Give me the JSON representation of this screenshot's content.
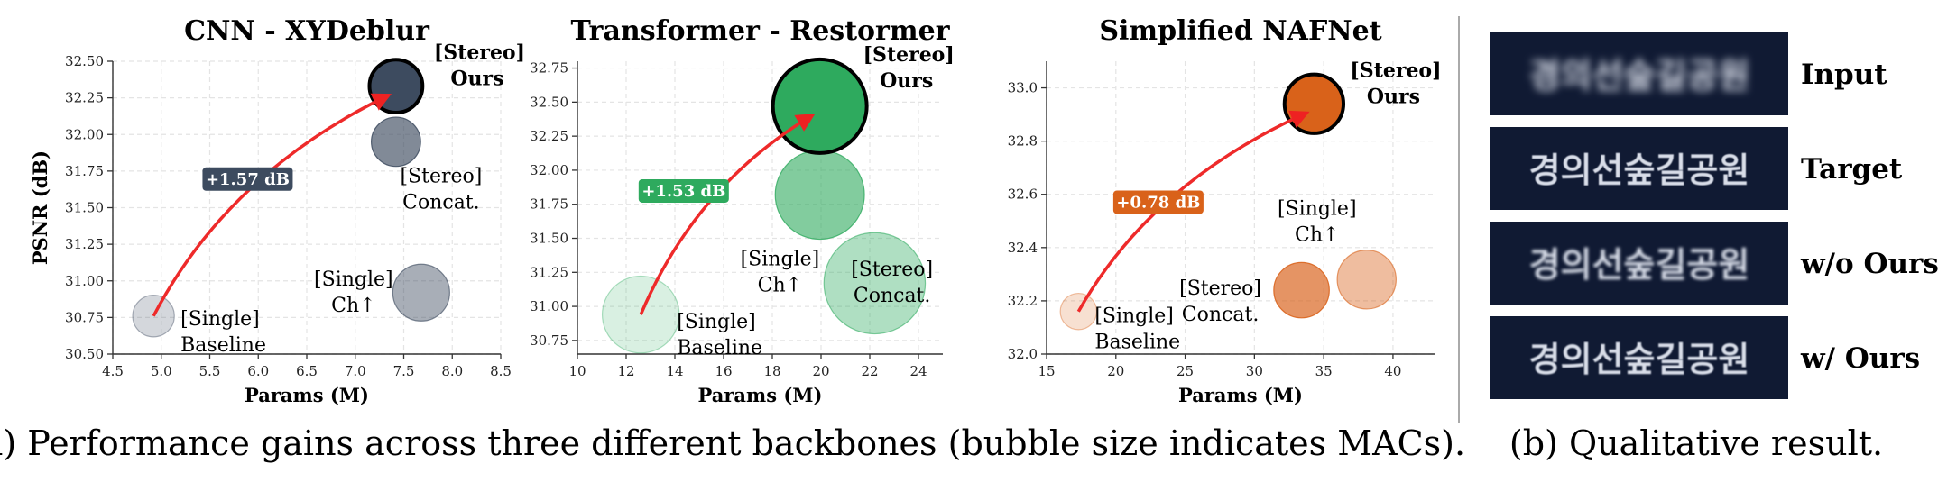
{
  "captions": {
    "a": "(a) Performance gains across three different backbones (bubble size indicates MACs).",
    "b": "(b) Qualitative result."
  },
  "qualitative": {
    "hangul_text": "경의선숲길공원",
    "rows": [
      {
        "label": "Input",
        "blur": 4.5
      },
      {
        "label": "Target",
        "blur": 0.6
      },
      {
        "label": "w/o Ours",
        "blur": 1.6
      },
      {
        "label": "w/ Ours",
        "blur": 0.9
      }
    ]
  },
  "chart_data": [
    {
      "type": "scatter",
      "title": "CNN - XYDeblur",
      "xlabel": "Params (M)",
      "ylabel": "PSNR (dB)",
      "xlim": [
        4.5,
        8.5
      ],
      "ylim": [
        30.5,
        32.5
      ],
      "xticks": [
        "4.5",
        "5.0",
        "5.5",
        "6.0",
        "6.5",
        "7.0",
        "7.5",
        "8.0",
        "8.5"
      ],
      "yticks": [
        "30.50",
        "30.75",
        "31.00",
        "31.25",
        "31.50",
        "31.75",
        "32.00",
        "32.25",
        "32.50"
      ],
      "color": "#3d4b5f",
      "gain_label": "+1.57 dB",
      "points": [
        {
          "label": [
            "[Single]",
            "Baseline"
          ],
          "x": 4.92,
          "y": 30.76,
          "mac": 0.55,
          "alpha": 0.22
        },
        {
          "label": [
            "[Single]",
            "Ch↑"
          ],
          "x": 7.68,
          "y": 30.92,
          "mac": 0.75,
          "alpha": 0.45
        },
        {
          "label": [
            "[Stereo]",
            "Concat."
          ],
          "x": 7.42,
          "y": 31.95,
          "mac": 0.65,
          "alpha": 0.65
        },
        {
          "label": [
            "[Stereo]",
            "Ours"
          ],
          "x": 7.42,
          "y": 32.33,
          "mac": 0.7,
          "alpha": 1.0,
          "highlight": true
        }
      ]
    },
    {
      "type": "scatter",
      "title": "Transformer - Restormer",
      "xlabel": "Params (M)",
      "ylabel": "",
      "xlim": [
        10,
        25
      ],
      "ylim": [
        30.65,
        32.8
      ],
      "xticks": [
        "10",
        "12",
        "14",
        "16",
        "18",
        "20",
        "22",
        "24"
      ],
      "yticks": [
        "30.75",
        "31.00",
        "31.25",
        "31.50",
        "31.75",
        "32.00",
        "32.25",
        "32.50",
        "32.75"
      ],
      "color": "#2eaa5e",
      "gain_label": "+1.53 dB",
      "points": [
        {
          "label": [
            "[Single]",
            "Baseline"
          ],
          "x": 12.6,
          "y": 30.94,
          "mac": 0.82,
          "alpha": 0.18
        },
        {
          "label": [
            "[Single]",
            "Ch↑"
          ],
          "x": 22.2,
          "y": 31.17,
          "mac": 1.08,
          "alpha": 0.38
        },
        {
          "label": [
            "[Stereo]",
            "Concat."
          ],
          "x": 19.95,
          "y": 31.82,
          "mac": 0.95,
          "alpha": 0.6
        },
        {
          "label": [
            "[Stereo]",
            "Ours"
          ],
          "x": 19.95,
          "y": 32.47,
          "mac": 1.0,
          "alpha": 1.0,
          "highlight": true
        }
      ]
    },
    {
      "type": "scatter",
      "title": "Simplified NAFNet",
      "xlabel": "Params (M)",
      "ylabel": "",
      "xlim": [
        15,
        43
      ],
      "ylim": [
        32.0,
        33.1
      ],
      "xticks": [
        "15",
        "20",
        "25",
        "30",
        "35",
        "40"
      ],
      "yticks": [
        "32.0",
        "32.2",
        "32.4",
        "32.6",
        "32.8",
        "33.0"
      ],
      "color": "#d9621a",
      "gain_label": "+0.78 dB",
      "points": [
        {
          "label": [
            "[Single]",
            "Baseline"
          ],
          "x": 17.3,
          "y": 32.16,
          "mac": 0.42,
          "alpha": 0.2
        },
        {
          "label": [
            "[Single]",
            "Ch↑"
          ],
          "x": 38.1,
          "y": 32.28,
          "mac": 0.68,
          "alpha": 0.42
        },
        {
          "label": [
            "[Stereo]",
            "Concat."
          ],
          "x": 33.4,
          "y": 32.24,
          "mac": 0.64,
          "alpha": 0.68
        },
        {
          "label": [
            "[Stereo]",
            "Ours"
          ],
          "x": 34.3,
          "y": 32.94,
          "mac": 0.68,
          "alpha": 1.0,
          "highlight": true
        }
      ]
    }
  ]
}
